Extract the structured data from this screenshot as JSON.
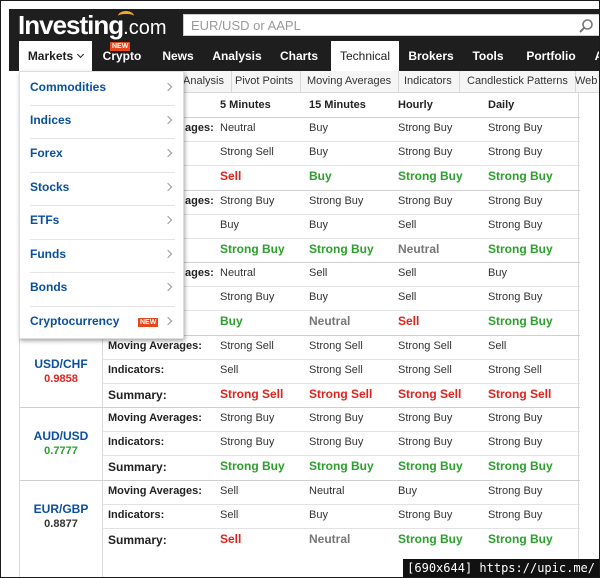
{
  "header": {
    "logo_text": "Investing",
    "logo_suffix": ".com",
    "search_placeholder": "EUR/USD or AAPL"
  },
  "nav": {
    "items": [
      {
        "label": "Markets",
        "key": "markets"
      },
      {
        "label": "Crypto",
        "key": "crypto",
        "badge": "NEW"
      },
      {
        "label": "News",
        "key": "news"
      },
      {
        "label": "Analysis",
        "key": "analysis"
      },
      {
        "label": "Charts",
        "key": "charts"
      },
      {
        "label": "Technical",
        "key": "technical"
      },
      {
        "label": "Brokers",
        "key": "brokers"
      },
      {
        "label": "Tools",
        "key": "tools"
      },
      {
        "label": "Portfolio",
        "key": "portfolio"
      },
      {
        "label": "A",
        "key": "more"
      }
    ]
  },
  "subnav": {
    "items": [
      "Analysis",
      "Pivot Points",
      "Moving Averages",
      "Indicators",
      "Candlestick Patterns",
      "Web"
    ]
  },
  "dropdown": {
    "items": [
      {
        "label": "Commodities"
      },
      {
        "label": "Indices"
      },
      {
        "label": "Forex"
      },
      {
        "label": "Stocks"
      },
      {
        "label": "ETFs"
      },
      {
        "label": "Funds"
      },
      {
        "label": "Bonds"
      },
      {
        "label": "Cryptocurrency",
        "badge": "NEW"
      }
    ]
  },
  "table": {
    "columns": [
      "5 Minutes",
      "15 Minutes",
      "Hourly",
      "Daily"
    ],
    "row_labels": {
      "ma": "Moving Averages:",
      "ma_partial": "ages:",
      "ind": "Indicators:",
      "sum": "Summary:"
    },
    "groups": [
      {
        "name": "",
        "price": "",
        "ma": [
          "Neutral",
          "Buy",
          "Strong Buy",
          "Strong Buy"
        ],
        "ind": [
          "Strong Sell",
          "Buy",
          "Strong Buy",
          "Strong Buy"
        ],
        "sum": [
          "Sell",
          "Buy",
          "Strong Buy",
          "Strong Buy"
        ]
      },
      {
        "name": "",
        "price": "",
        "ma": [
          "Strong Buy",
          "Strong Buy",
          "Strong Buy",
          "Strong Buy"
        ],
        "ind": [
          "Buy",
          "Buy",
          "Sell",
          "Strong Buy"
        ],
        "sum": [
          "Strong Buy",
          "Strong Buy",
          "Neutral",
          "Strong Buy"
        ]
      },
      {
        "name": "",
        "price": "",
        "ma": [
          "Neutral",
          "Sell",
          "Sell",
          "Buy"
        ],
        "ind": [
          "Strong Buy",
          "Buy",
          "Sell",
          "Strong Buy"
        ],
        "sum": [
          "Buy",
          "Neutral",
          "Sell",
          "Strong Buy"
        ]
      },
      {
        "name": "USD/CHF",
        "price": "0.9858",
        "price_color": "#e0231c",
        "ma": [
          "Strong Sell",
          "Strong Sell",
          "Strong Sell",
          "Sell"
        ],
        "ind": [
          "Sell",
          "Strong Sell",
          "Strong Sell",
          "Strong Sell"
        ],
        "sum": [
          "Strong Sell",
          "Strong Sell",
          "Strong Sell",
          "Strong Sell"
        ]
      },
      {
        "name": "AUD/USD",
        "price": "0.7777",
        "price_color": "#2ca02c",
        "ma": [
          "Strong Buy",
          "Strong Buy",
          "Strong Buy",
          "Strong Buy"
        ],
        "ind": [
          "Strong Buy",
          "Strong Buy",
          "Strong Buy",
          "Strong Buy"
        ],
        "sum": [
          "Strong Buy",
          "Strong Buy",
          "Strong Buy",
          "Strong Buy"
        ]
      },
      {
        "name": "EUR/GBP",
        "price": "0.8877",
        "price_color": "#333333",
        "ma": [
          "Sell",
          "Neutral",
          "Buy",
          "Strong Buy"
        ],
        "ind": [
          "Sell",
          "Buy",
          "Strong Buy",
          "Strong Buy"
        ],
        "sum": [
          "Sell",
          "Neutral",
          "Strong Buy",
          "Strong Buy"
        ]
      }
    ]
  },
  "colors": {
    "buy": "#2ca02c",
    "sell": "#e0231c",
    "neutral": "#777777",
    "link": "#0a4f9e",
    "header_bg": "#1e1e1e",
    "badge": "#e8461b"
  },
  "watermark": "[690x644] https://upic.me/"
}
